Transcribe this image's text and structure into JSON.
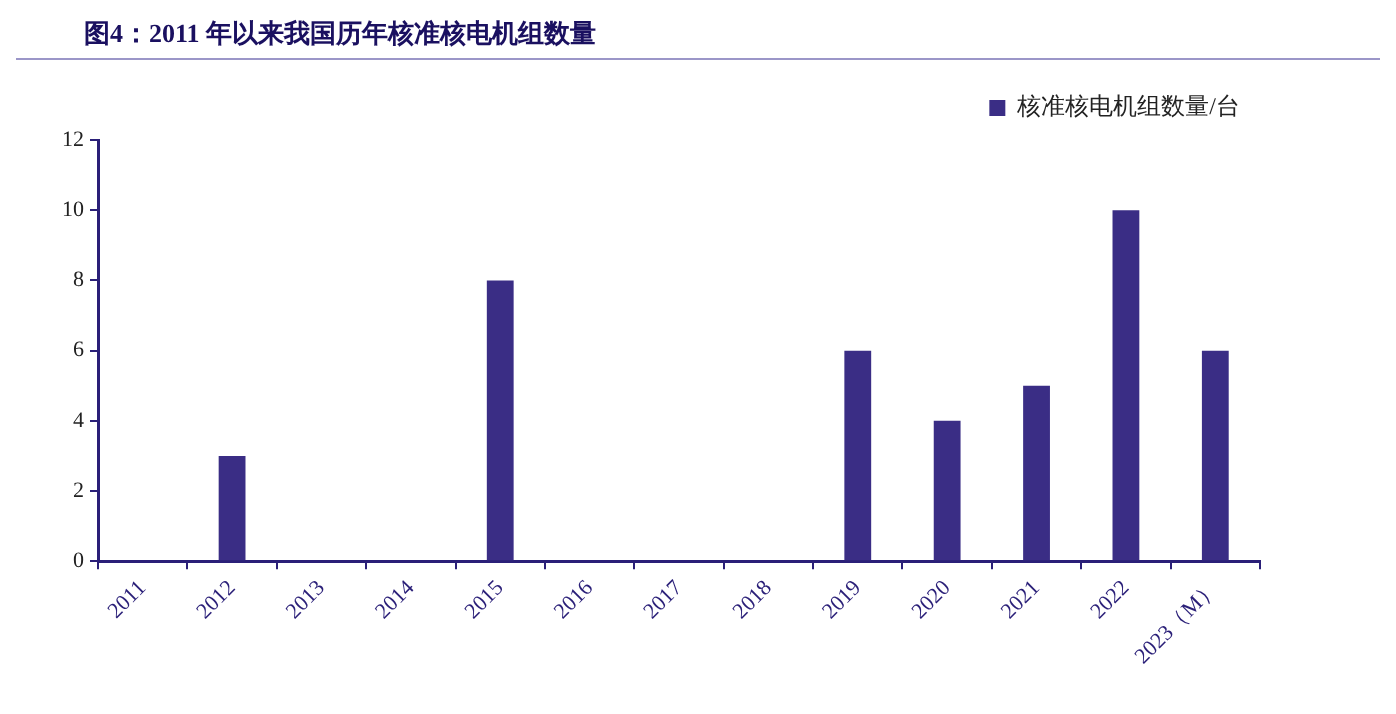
{
  "chart_data": {
    "type": "bar",
    "title": "图4：2011 年以来我国历年核准核电机组数量",
    "categories": [
      "2011",
      "2012",
      "2013",
      "2014",
      "2015",
      "2016",
      "2017",
      "2018",
      "2019",
      "2020",
      "2021",
      "2022",
      "2023（M）"
    ],
    "series": [
      {
        "name": "核准核电机组数量/台",
        "color": "#3a2d85",
        "values": [
          0,
          3,
          0,
          0,
          8,
          0,
          0,
          0,
          6,
          4,
          5,
          10,
          6
        ]
      }
    ],
    "ylim": [
      0,
      12
    ],
    "yticks": [
      0,
      2,
      4,
      6,
      8,
      10,
      12
    ],
    "grid": false,
    "legend": "top"
  }
}
